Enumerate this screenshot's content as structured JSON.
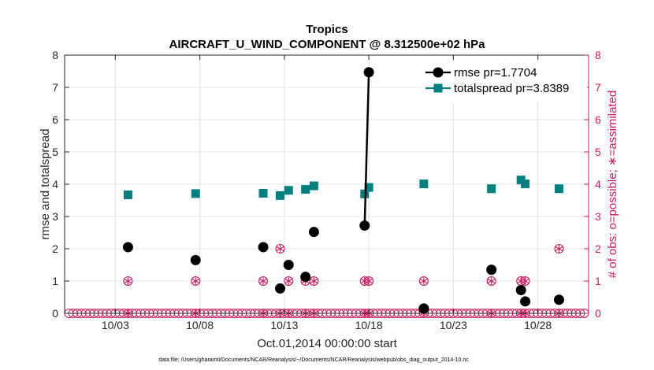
{
  "chart_data": {
    "type": "scatter",
    "title": "Tropics",
    "subtitle": "AIRCRAFT_U_WIND_COMPONENT @ 8.312500e+02 hPa",
    "xlabel": "Oct.01,2014 00:00:00 start",
    "ylabel_left": "rmse and totalspread",
    "ylabel_right": "# of obs: o=possible; ∗=assimilated",
    "footnote": "data file: /Users/gharamti/Documents/NCAR/Reanalysis/~/Documents/NCAR/Reanalysis/webpub/obs_diag_output_2014-10.nc",
    "xlim": [
      0,
      31
    ],
    "ylim_left": [
      0,
      8
    ],
    "ylim_right": [
      0,
      8
    ],
    "x_ticks": [
      3,
      8,
      13,
      18,
      23,
      28
    ],
    "x_tick_labels": [
      "10/03",
      "10/08",
      "10/13",
      "10/18",
      "10/23",
      "10/28"
    ],
    "y_ticks_left": [
      "0",
      "1",
      "2",
      "3",
      "4",
      "5",
      "6",
      "7",
      "8"
    ],
    "y_ticks_right": [
      "0",
      "1",
      "2",
      "3",
      "4",
      "5",
      "6",
      "7",
      "8"
    ],
    "grid": true,
    "colors": {
      "rmse": "#000000",
      "totalspread": "#008080",
      "obs": "#cc1a5f"
    },
    "series": [
      {
        "name": "rmse",
        "legend": "rmse pr=1.7704",
        "x": [
          3.75,
          7.75,
          11.75,
          12.75,
          13.25,
          14.25,
          14.75,
          17.75,
          18.0,
          21.25,
          25.25,
          27.0,
          27.25,
          29.25
        ],
        "y": [
          2.05,
          1.65,
          2.05,
          0.77,
          1.5,
          1.13,
          2.52,
          2.72,
          7.47,
          0.15,
          1.35,
          0.72,
          0.37,
          0.42
        ],
        "line_segments": [
          [
            17.75,
            2.72,
            18.0,
            7.47
          ]
        ]
      },
      {
        "name": "totalspread",
        "legend": "totalspread pr=3.8389",
        "x": [
          3.75,
          7.75,
          11.75,
          12.75,
          13.25,
          14.25,
          14.75,
          17.75,
          18.0,
          21.25,
          25.25,
          27.0,
          27.25,
          29.25
        ],
        "y": [
          3.67,
          3.71,
          3.72,
          3.65,
          3.81,
          3.84,
          3.95,
          3.7,
          3.9,
          4.01,
          3.86,
          4.13,
          4.01,
          3.86
        ],
        "line_segments": [
          [
            17.75,
            3.7,
            18.0,
            3.9
          ]
        ]
      },
      {
        "name": "obs_possible",
        "marker": "circle-star",
        "x": [
          3.75,
          7.75,
          11.75,
          12.75,
          13.25,
          14.25,
          14.75,
          17.75,
          18.0,
          21.25,
          25.25,
          27.0,
          27.25,
          29.25
        ],
        "y": [
          1,
          1,
          1,
          2,
          1,
          1,
          1,
          1,
          1,
          1,
          1,
          1,
          1,
          2
        ]
      }
    ],
    "zero_obs_marker_spacing_days": 0.25
  }
}
